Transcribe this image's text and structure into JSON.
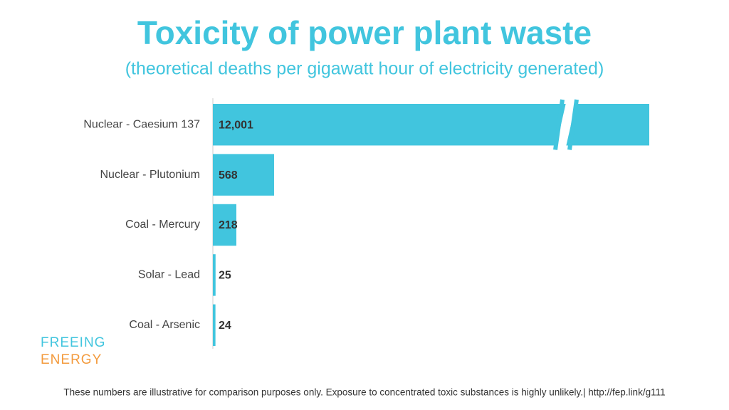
{
  "chart_data": {
    "type": "hbar",
    "title": "Toxicity of power plant waste",
    "subtitle": "(theoretical deaths per gigawatt hour of electricity generated)",
    "categories": [
      "Nuclear - Caesium 137",
      "Nuclear - Plutonium",
      "Coal - Mercury",
      "Solar - Lead",
      "Coal - Arsenic"
    ],
    "values": [
      12001,
      568,
      218,
      25,
      24
    ],
    "value_labels": [
      "12,001",
      "568",
      "218",
      "25",
      "24"
    ],
    "color": "#41c5de",
    "xlim": [
      0,
      4050
    ],
    "axis_break": true
  },
  "logo": {
    "line1": "FREEING",
    "line2": "ENERGY"
  },
  "footer": "These numbers are illustrative for comparison purposes only. Exposure to concentrated toxic substances is highly unlikely.| http://fep.link/g111"
}
